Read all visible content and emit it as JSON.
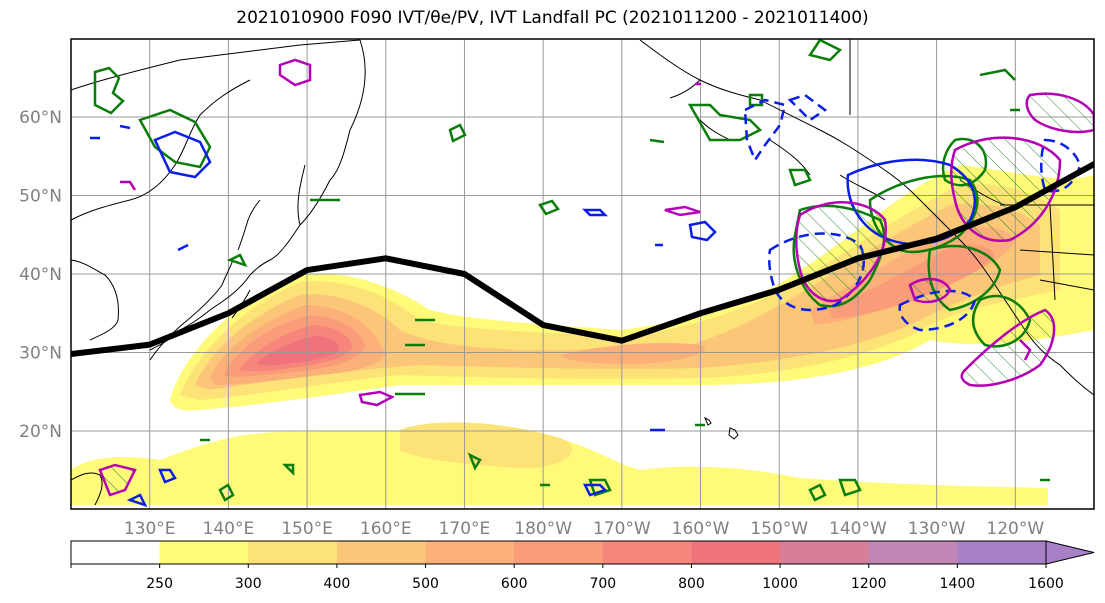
{
  "title": "2021010900 F090 IVT/θe/PV, IVT Landfall PC (2021011200 - 2021011400)",
  "colors": {
    "frame": "#000000",
    "grid": "#999999",
    "coast": "#000000",
    "jet_line": "#000000",
    "theta_e_contour": "#0a7d0a",
    "pv_contour_solid": "#0a1ee6",
    "pv_contour_dashed": "#0a1ee6",
    "landfall_contour": "#b400b4"
  },
  "map": {
    "projection": "PlateCarree (Pacific-centered)",
    "lat_labels": [
      "60°N",
      "50°N",
      "40°N",
      "30°N",
      "20°N"
    ],
    "lon_labels": [
      "130°E",
      "140°E",
      "150°E",
      "160°E",
      "170°E",
      "180°W",
      "170°W",
      "160°W",
      "150°W",
      "140°W",
      "130°W",
      "120°W"
    ],
    "lon_range": [
      120,
      250
    ],
    "lat_range": [
      10,
      70
    ]
  },
  "colorbar": {
    "ticks": [
      "250",
      "300",
      "400",
      "500",
      "600",
      "700",
      "800",
      "1000",
      "1200",
      "1400",
      "1600"
    ],
    "colors": [
      "#ffffff",
      "#fffa78",
      "#fde277",
      "#fcc679",
      "#fbb07a",
      "#fa9b7a",
      "#f8857b",
      "#ef737d",
      "#d77f98",
      "#c086b5",
      "#a880c6"
    ],
    "extend": "max"
  },
  "chart_data": {
    "type": "map",
    "title": "2021010900 F090 IVT/θe/PV, IVT Landfall PC (2021011200 - 2021011400)",
    "ivt_levels": [
      250,
      300,
      400,
      500,
      600,
      700,
      800,
      1000,
      1200,
      1400,
      1600
    ],
    "ivt_max_region": {
      "lon": 150,
      "lat": 30.5,
      "value_range": "800-1000"
    },
    "jet_axis": {
      "lon": [
        120,
        130,
        140,
        150,
        160,
        170,
        180,
        190,
        200,
        210,
        220,
        230,
        240,
        250
      ],
      "lat": [
        29.8,
        31,
        35,
        40.5,
        42,
        40,
        33.5,
        31.5,
        35,
        38,
        42,
        44.5,
        48.5,
        54
      ]
    }
  }
}
